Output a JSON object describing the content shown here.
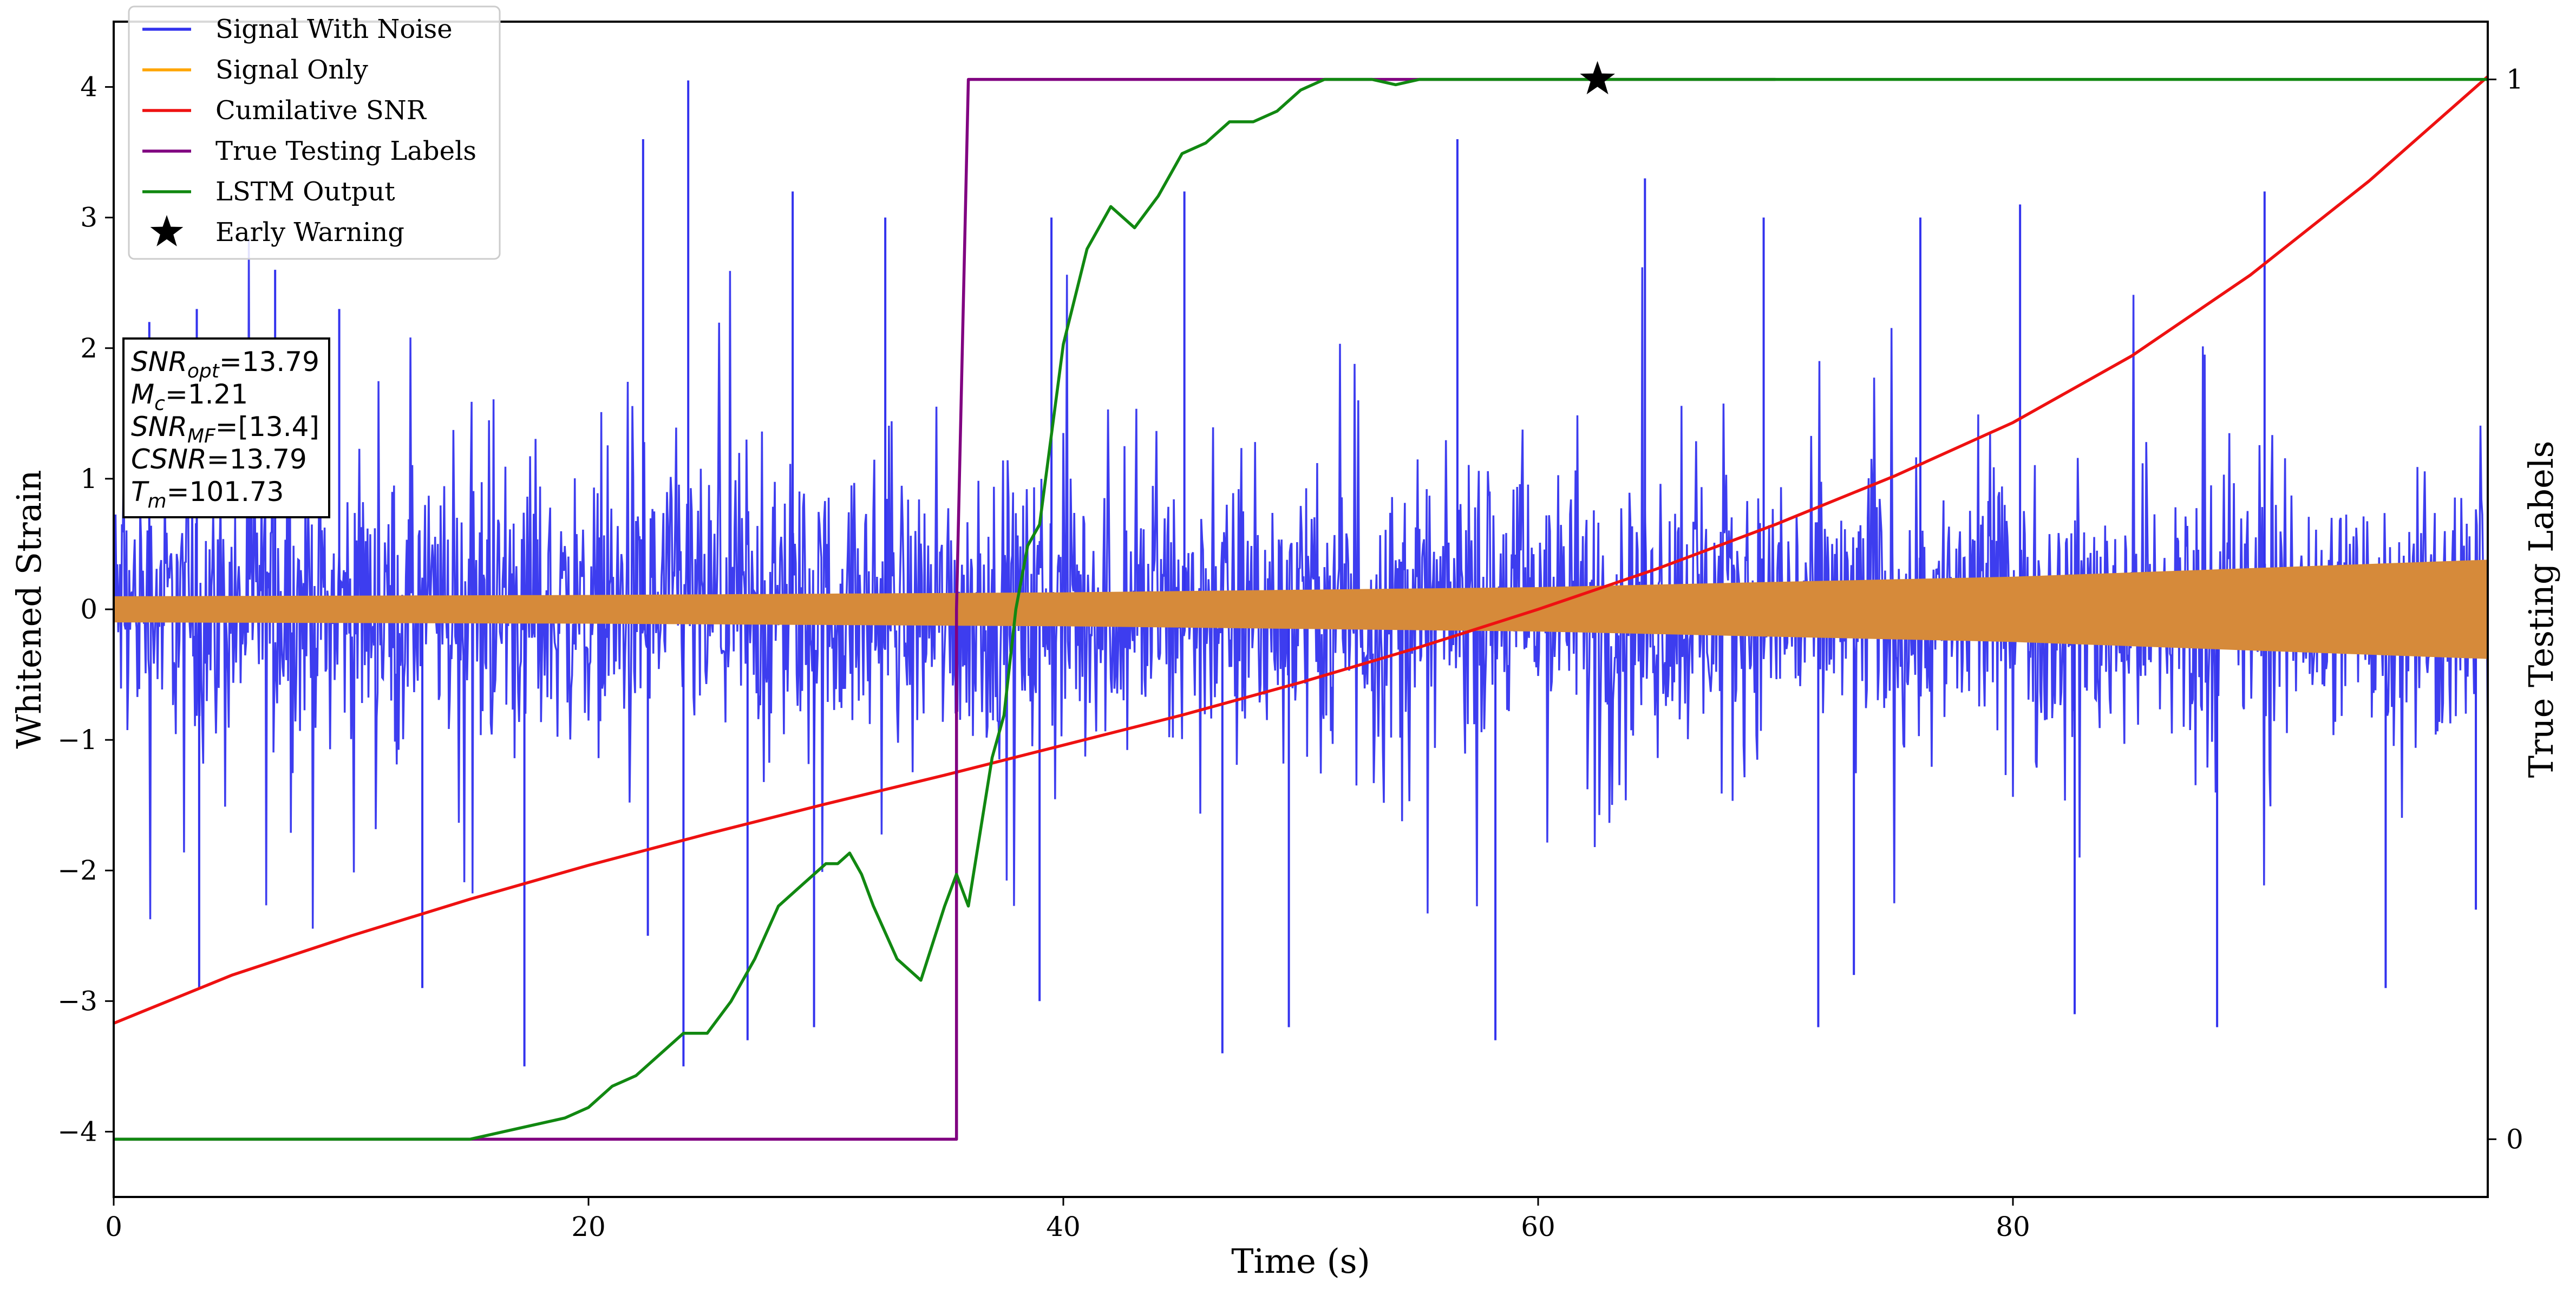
{
  "chart_data": {
    "type": "line",
    "title": "",
    "xlabel": "Time (s)",
    "ylabel": "Whitened Strain",
    "y2label": "True Testing Labels",
    "xlim": [
      0,
      100
    ],
    "ylim": [
      -4.5,
      4.5
    ],
    "y2lim": [
      -0.0545,
      1.0545
    ],
    "x_ticks": [
      0,
      20,
      40,
      60,
      80
    ],
    "x_tick_labels": [
      "0",
      "20",
      "40",
      "60",
      "80"
    ],
    "y_ticks": [
      -4,
      -3,
      -2,
      -1,
      0,
      1,
      2,
      3,
      4
    ],
    "y_tick_labels": [
      "−4",
      "−3",
      "−2",
      "−1",
      "0",
      "1",
      "2",
      "3",
      "4"
    ],
    "y2_ticks": [
      0,
      1
    ],
    "y2_tick_labels": [
      "0",
      "1"
    ],
    "grid": false,
    "legend_position": "top-left",
    "series": [
      {
        "name": "Signal With Noise",
        "color": "#3333ee",
        "axis": "left",
        "kind": "noise",
        "x_range": [
          0,
          100
        ],
        "envelope_typical": 0.75,
        "spikes": [
          {
            "x": 1.5,
            "y": 2.2
          },
          {
            "x": 3.5,
            "y": 2.3
          },
          {
            "x": 3.6,
            "y": -2.9
          },
          {
            "x": 6.8,
            "y": 2.6
          },
          {
            "x": 9.5,
            "y": 2.3
          },
          {
            "x": 13.0,
            "y": -2.9
          },
          {
            "x": 17.3,
            "y": -3.5
          },
          {
            "x": 22.3,
            "y": 3.6
          },
          {
            "x": 22.5,
            "y": -2.5
          },
          {
            "x": 24.2,
            "y": 4.05
          },
          {
            "x": 24.0,
            "y": -3.5
          },
          {
            "x": 26.7,
            "y": -3.3
          },
          {
            "x": 28.6,
            "y": 3.2
          },
          {
            "x": 29.5,
            "y": -3.2
          },
          {
            "x": 32.5,
            "y": 3.0
          },
          {
            "x": 39.5,
            "y": 3.0
          },
          {
            "x": 39.0,
            "y": -3.0
          },
          {
            "x": 45.1,
            "y": 3.2
          },
          {
            "x": 46.7,
            "y": -3.4
          },
          {
            "x": 49.5,
            "y": -3.2
          },
          {
            "x": 56.6,
            "y": 3.6
          },
          {
            "x": 58.2,
            "y": -3.3
          },
          {
            "x": 64.5,
            "y": 3.3
          },
          {
            "x": 69.5,
            "y": 3.0
          },
          {
            "x": 71.8,
            "y": -3.2
          },
          {
            "x": 73.3,
            "y": -2.8
          },
          {
            "x": 76.1,
            "y": 3.0
          },
          {
            "x": 80.3,
            "y": 3.1
          },
          {
            "x": 82.6,
            "y": -3.1
          },
          {
            "x": 88.6,
            "y": -3.2
          },
          {
            "x": 90.6,
            "y": 3.2
          },
          {
            "x": 95.7,
            "y": -2.9
          },
          {
            "x": 99.5,
            "y": -2.3
          }
        ]
      },
      {
        "name": "Signal Only",
        "color": "#ffa500",
        "fill": "#d68a3a",
        "axis": "left",
        "kind": "chirp-envelope",
        "x": [
          0,
          20,
          40,
          60,
          80,
          100
        ],
        "amplitude": [
          0.1,
          0.11,
          0.13,
          0.17,
          0.25,
          0.38
        ]
      },
      {
        "name": "Cumilative SNR",
        "color": "#ee1111",
        "axis": "left",
        "x": [
          0,
          5,
          10,
          15,
          20,
          25,
          30,
          35,
          40,
          45,
          50,
          55,
          60,
          65,
          70,
          75,
          80,
          85,
          90,
          95,
          100
        ],
        "values": [
          -3.17,
          -2.8,
          -2.5,
          -2.22,
          -1.96,
          -1.72,
          -1.49,
          -1.27,
          -1.04,
          -0.81,
          -0.56,
          -0.29,
          0.0,
          0.31,
          0.65,
          1.02,
          1.43,
          1.94,
          2.56,
          3.28,
          4.08
        ]
      },
      {
        "name": "True Testing Labels",
        "color": "#800080",
        "axis": "right",
        "x": [
          0,
          35.5,
          35.5,
          36.0,
          70
        ],
        "values": [
          0,
          0,
          0.5,
          1,
          1
        ]
      },
      {
        "name": "LSTM Output",
        "color": "#118811",
        "axis": "right",
        "x": [
          0,
          10,
          15,
          17,
          19,
          20,
          21,
          22,
          23,
          24,
          25,
          26,
          27,
          28,
          29,
          30,
          30.5,
          31,
          31.5,
          32,
          33,
          34,
          35,
          35.5,
          36,
          37,
          37.5,
          38,
          38.5,
          39,
          40,
          41,
          42,
          43,
          44,
          45,
          46,
          47,
          48,
          49,
          50,
          51,
          52,
          53,
          54,
          55,
          56,
          57,
          58,
          60,
          62,
          65,
          70,
          80,
          90,
          100
        ],
        "values": [
          0,
          0,
          0.0,
          0.01,
          0.02,
          0.03,
          0.05,
          0.06,
          0.08,
          0.1,
          0.1,
          0.13,
          0.17,
          0.22,
          0.24,
          0.26,
          0.26,
          0.27,
          0.25,
          0.22,
          0.17,
          0.15,
          0.22,
          0.25,
          0.22,
          0.36,
          0.4,
          0.5,
          0.56,
          0.58,
          0.75,
          0.84,
          0.88,
          0.86,
          0.89,
          0.93,
          0.94,
          0.96,
          0.96,
          0.97,
          0.99,
          1.0,
          1.0,
          1.0,
          0.995,
          1.0,
          1.0,
          1.0,
          1.0,
          1.0,
          1.0,
          1.0,
          1.0,
          1.0,
          1.0,
          1.0
        ]
      },
      {
        "name": "Early Warning",
        "color": "#000000",
        "axis": "right",
        "kind": "marker",
        "x": [
          62.5
        ],
        "values": [
          1.0
        ]
      }
    ],
    "info_box": {
      "lines": [
        {
          "main": "SNR",
          "sub": "opt",
          "rest": "=13.79"
        },
        {
          "main": "M",
          "sub": "c",
          "rest": "=1.21"
        },
        {
          "main": "SNR",
          "sub": "MF",
          "rest": "=[13.4]"
        },
        {
          "main": "CSNR",
          "sub": "",
          "rest": "=13.79"
        },
        {
          "main": "T",
          "sub": "m",
          "rest": "=101.73"
        }
      ]
    }
  }
}
